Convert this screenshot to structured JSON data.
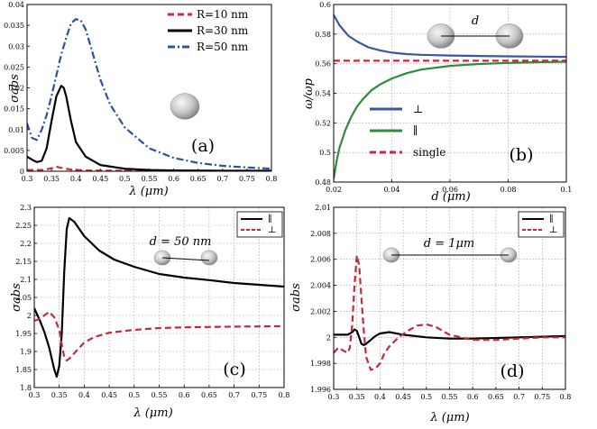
{
  "chart_data": [
    {
      "type": "line",
      "panel": "(a)",
      "xlabel": "λ (μm)",
      "ylabel": "σabs",
      "xlim": [
        0.3,
        0.8
      ],
      "ylim": [
        0,
        0.04
      ],
      "xticks": [
        "0.3",
        "0.35",
        "0.4",
        "0.45",
        "0.5",
        "0.55",
        "0.6",
        "0.65",
        "0.7",
        "0.75",
        "0.8"
      ],
      "yticks": [
        "0",
        "0.005",
        "0.01",
        "0.015",
        "0.02",
        "0.025",
        "0.03",
        "0.035",
        "0.04"
      ],
      "grid": false,
      "legend_position": "top-right",
      "series": [
        {
          "name": "R=10 nm",
          "color": "#d62839",
          "style": "dashed",
          "x": [
            0.3,
            0.33,
            0.35,
            0.36,
            0.37,
            0.39,
            0.42,
            0.5,
            0.6,
            0.7,
            0.8
          ],
          "y": [
            0.0003,
            0.0003,
            0.0007,
            0.0011,
            0.0008,
            0.0004,
            0.0002,
            0.0001,
            0.0001,
            0.0001,
            0.0001
          ]
        },
        {
          "name": "R=30 nm",
          "color": "#000000",
          "style": "solid",
          "x": [
            0.3,
            0.31,
            0.32,
            0.33,
            0.34,
            0.35,
            0.36,
            0.37,
            0.375,
            0.38,
            0.39,
            0.4,
            0.42,
            0.45,
            0.5,
            0.55,
            0.6,
            0.7,
            0.8
          ],
          "y": [
            0.0035,
            0.0028,
            0.0022,
            0.0025,
            0.0055,
            0.012,
            0.018,
            0.0205,
            0.02,
            0.018,
            0.012,
            0.007,
            0.0035,
            0.0015,
            0.0006,
            0.0003,
            0.0002,
            0.0001,
            0.0001
          ]
        },
        {
          "name": "R=50 nm",
          "color": "#2f4fa3",
          "style": "dashdot",
          "x": [
            0.3,
            0.31,
            0.32,
            0.33,
            0.34,
            0.35,
            0.36,
            0.37,
            0.38,
            0.39,
            0.4,
            0.41,
            0.42,
            0.43,
            0.45,
            0.47,
            0.5,
            0.55,
            0.6,
            0.65,
            0.7,
            0.75,
            0.8
          ],
          "y": [
            0.0115,
            0.008,
            0.0075,
            0.01,
            0.0135,
            0.018,
            0.023,
            0.028,
            0.032,
            0.0355,
            0.0365,
            0.0362,
            0.034,
            0.03,
            0.022,
            0.016,
            0.0105,
            0.0055,
            0.0032,
            0.002,
            0.0013,
            0.0009,
            0.0006
          ]
        }
      ]
    },
    {
      "type": "line",
      "panel": "(b)",
      "xlabel": "d (μm)",
      "ylabel": "ω/ωp",
      "xlim": [
        0.02,
        0.1
      ],
      "ylim": [
        0.48,
        0.6
      ],
      "xticks": [
        "0.02",
        "0.04",
        "0.06",
        "0.08",
        "0.1"
      ],
      "yticks": [
        "0.48",
        "0.5",
        "0.52",
        "0.54",
        "0.56",
        "0.58",
        "0.6"
      ],
      "grid": true,
      "annotation": "d",
      "legend_position": "bottom-left",
      "series": [
        {
          "name": "⊥",
          "color": "#3a56a8",
          "style": "solid",
          "x": [
            0.02,
            0.022,
            0.025,
            0.028,
            0.032,
            0.036,
            0.04,
            0.045,
            0.05,
            0.06,
            0.07,
            0.08,
            0.09,
            0.1
          ],
          "y": [
            0.593,
            0.586,
            0.579,
            0.575,
            0.571,
            0.569,
            0.5675,
            0.5665,
            0.566,
            0.5655,
            0.5652,
            0.565,
            0.5648,
            0.5646
          ]
        },
        {
          "name": "∥",
          "color": "#2e8b3e",
          "style": "solid",
          "x": [
            0.02,
            0.021,
            0.022,
            0.024,
            0.026,
            0.028,
            0.03,
            0.033,
            0.036,
            0.04,
            0.045,
            0.05,
            0.06,
            0.07,
            0.08,
            0.09,
            0.1
          ],
          "y": [
            0.482,
            0.494,
            0.503,
            0.515,
            0.524,
            0.531,
            0.536,
            0.542,
            0.546,
            0.55,
            0.5535,
            0.556,
            0.5585,
            0.5598,
            0.5605,
            0.561,
            0.5613
          ]
        },
        {
          "name": "single",
          "color": "#c8283a",
          "style": "dashed",
          "x": [
            0.02,
            0.1
          ],
          "y": [
            0.562,
            0.562
          ]
        }
      ]
    },
    {
      "type": "line",
      "panel": "(c)",
      "xlabel": "λ (μm)",
      "ylabel": "σabs",
      "xlim": [
        0.3,
        0.8
      ],
      "ylim": [
        1.8,
        2.3
      ],
      "xticks": [
        "0.3",
        "0.35",
        "0.4",
        "0.45",
        "0.5",
        "0.55",
        "0.6",
        "0.65",
        "0.7",
        "0.75",
        "0.8"
      ],
      "yticks": [
        "1.8",
        "1.85",
        "1.9",
        "1.95",
        "2",
        "2.05",
        "2.1",
        "2.15",
        "2.2",
        "2.25",
        "2.3"
      ],
      "grid": true,
      "annotation": "d = 50 nm",
      "legend_position": "top-right",
      "series": [
        {
          "name": "∥",
          "color": "#000000",
          "style": "solid",
          "x": [
            0.3,
            0.31,
            0.32,
            0.33,
            0.335,
            0.34,
            0.345,
            0.35,
            0.355,
            0.36,
            0.365,
            0.37,
            0.38,
            0.4,
            0.43,
            0.46,
            0.5,
            0.55,
            0.6,
            0.65,
            0.7,
            0.75,
            0.8
          ],
          "y": [
            2.02,
            1.99,
            1.955,
            1.91,
            1.88,
            1.85,
            1.83,
            1.86,
            1.95,
            2.12,
            2.24,
            2.27,
            2.26,
            2.22,
            2.18,
            2.155,
            2.135,
            2.115,
            2.105,
            2.098,
            2.09,
            2.085,
            2.08
          ]
        },
        {
          "name": "⊥",
          "color": "#c8283a",
          "style": "dashed",
          "x": [
            0.3,
            0.31,
            0.32,
            0.33,
            0.34,
            0.35,
            0.355,
            0.36,
            0.365,
            0.37,
            0.38,
            0.39,
            0.4,
            0.42,
            0.45,
            0.5,
            0.55,
            0.6,
            0.7,
            0.8
          ],
          "y": [
            1.985,
            1.99,
            2.0,
            2.01,
            1.995,
            1.96,
            1.92,
            1.885,
            1.875,
            1.88,
            1.895,
            1.91,
            1.925,
            1.94,
            1.952,
            1.96,
            1.965,
            1.967,
            1.969,
            1.97
          ]
        }
      ]
    },
    {
      "type": "line",
      "panel": "(d)",
      "xlabel": "λ (μm)",
      "ylabel": "σabs",
      "xlim": [
        0.3,
        0.8
      ],
      "ylim": [
        1.996,
        2.01
      ],
      "xticks": [
        "0.3",
        "0.35",
        "0.4",
        "0.45",
        "0.5",
        "0.55",
        "0.6",
        "0.65",
        "0.7",
        "0.75",
        "0.8"
      ],
      "yticks": [
        "1.996",
        "1.998",
        "2",
        "2.002",
        "2.004",
        "2.006",
        "2.008",
        "2.01"
      ],
      "grid": true,
      "annotation": "d = 1μm",
      "legend_position": "top-right",
      "series": [
        {
          "name": "∥",
          "color": "#000000",
          "style": "solid",
          "x": [
            0.3,
            0.32,
            0.33,
            0.34,
            0.345,
            0.35,
            0.355,
            0.36,
            0.365,
            0.37,
            0.38,
            0.39,
            0.4,
            0.42,
            0.45,
            0.5,
            0.55,
            0.6,
            0.7,
            0.8
          ],
          "y": [
            2.0002,
            2.0002,
            2.0002,
            2.0004,
            2.0006,
            2.0005,
            2.0,
            1.9995,
            1.9994,
            1.9995,
            1.9998,
            2.0001,
            2.0003,
            2.0004,
            2.0002,
            2.0,
            1.9999,
            1.9999,
            2.0,
            2.0001
          ]
        },
        {
          "name": "⊥",
          "color": "#c8283a",
          "style": "dashed",
          "x": [
            0.3,
            0.31,
            0.32,
            0.33,
            0.335,
            0.34,
            0.345,
            0.35,
            0.355,
            0.36,
            0.365,
            0.37,
            0.38,
            0.39,
            0.4,
            0.41,
            0.42,
            0.44,
            0.46,
            0.48,
            0.5,
            0.52,
            0.55,
            0.6,
            0.65,
            0.7,
            0.75,
            0.8
          ],
          "y": [
            1.9988,
            1.9992,
            1.999,
            1.9988,
            1.9992,
            2.001,
            2.004,
            2.0063,
            2.0055,
            2.003,
            2.0005,
            1.9985,
            1.9975,
            1.9976,
            1.998,
            1.9988,
            1.9993,
            2.0,
            2.0005,
            2.0009,
            2.001,
            2.0008,
            2.0002,
            1.9998,
            1.9998,
            1.9999,
            2.0,
            2.0
          ]
        }
      ]
    }
  ],
  "panel_labels": [
    "(a)",
    "(b)",
    "(c)",
    "(d)"
  ],
  "colors": {
    "frame": "#000000",
    "grid": "#9a9a9a",
    "sphere_light": "#f4f4f4",
    "sphere_dark": "#8c8c8c"
  }
}
